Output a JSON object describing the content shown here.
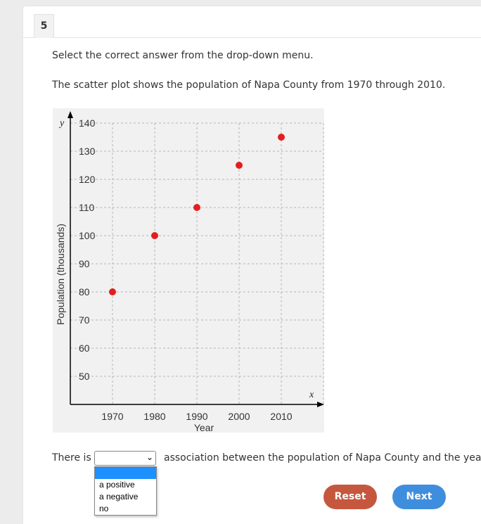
{
  "question": {
    "number": "5",
    "instruction": "Select the correct answer from the drop-down menu.",
    "prompt": "The scatter plot shows the population of Napa County from 1970 through 2010.",
    "sentence_before": "There is",
    "sentence_after": "association between the population of Napa County and the year."
  },
  "dropdown": {
    "selected": "",
    "options": [
      "",
      "a positive",
      "a negative",
      "no"
    ]
  },
  "buttons": {
    "reset": "Reset",
    "next": "Next"
  },
  "colors": {
    "point": "#e31e1e",
    "reset": "#c6573f",
    "next": "#3f8ede"
  },
  "chart_data": {
    "type": "scatter",
    "title": "",
    "xlabel": "Year",
    "ylabel": "Population (thousands)",
    "x_axis_letter": "x",
    "y_axis_letter": "y",
    "x_ticks": [
      1970,
      1980,
      1990,
      2000,
      2010
    ],
    "y_ticks": [
      50,
      60,
      70,
      80,
      90,
      100,
      110,
      120,
      130,
      140
    ],
    "xlim": [
      1960,
      2020
    ],
    "ylim": [
      40,
      140
    ],
    "grid": true,
    "x": [
      1970,
      1980,
      1990,
      2000,
      2010
    ],
    "y": [
      80,
      100,
      110,
      125,
      135
    ]
  }
}
